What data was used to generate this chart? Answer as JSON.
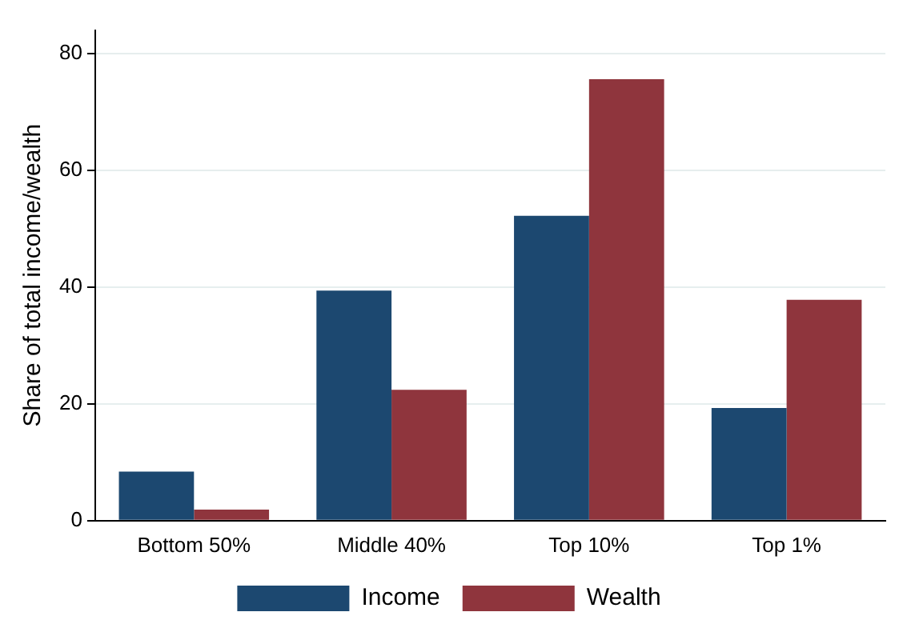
{
  "chart_data": {
    "type": "bar",
    "ylabel": "Share of total income/wealth",
    "categories": [
      "Bottom 50%",
      "Middle 40%",
      "Top 10%",
      "Top 1%"
    ],
    "series": [
      {
        "name": "Income",
        "color": "#1c4870",
        "values": [
          8.4,
          39.4,
          52.2,
          19.3
        ]
      },
      {
        "name": "Wealth",
        "color": "#8f353d",
        "values": [
          1.9,
          22.4,
          75.6,
          37.8
        ]
      }
    ],
    "ylim": [
      0,
      84
    ],
    "yticks": [
      0,
      20,
      40,
      60,
      80
    ],
    "grid": "y",
    "legend": "bottom"
  }
}
